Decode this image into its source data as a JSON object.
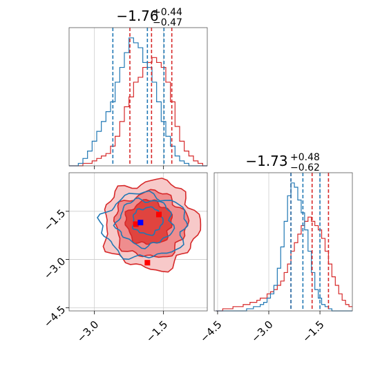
{
  "colors": {
    "red": "#d62728",
    "blue": "#1f77b4",
    "grid": "#cccccc",
    "red_fill_1": "#f7c9c9",
    "red_fill_2": "#ef8d8e",
    "red_fill_3": "#e0443f",
    "marker_red": "#ff0000",
    "marker_blue": "#0000ff"
  },
  "chart_data": [
    {
      "type": "histogram",
      "panel": "top-left marginal",
      "title": {
        "value": "−1.76",
        "upper": "+0.44",
        "lower": "−0.47"
      },
      "xlim": [
        -3.55,
        -0.55
      ],
      "xticks": [
        -3.0,
        -1.5
      ],
      "quantile_lines": {
        "red": [
          -2.23,
          -1.76,
          -1.32
        ],
        "blue": [
          -2.6,
          -1.85,
          -1.49
        ]
      },
      "series": [
        {
          "color": "red",
          "x": [
            -3.5,
            -3.4,
            -3.3,
            -3.2,
            -3.1,
            -3.0,
            -2.9,
            -2.8,
            -2.7,
            -2.6,
            -2.5,
            -2.4,
            -2.3,
            -2.2,
            -2.1,
            -2.0,
            -1.9,
            -1.8,
            -1.7,
            -1.6,
            -1.5,
            -1.4,
            -1.3,
            -1.2,
            -1.1,
            -1.0,
            -0.9,
            -0.8,
            -0.7,
            -0.6
          ],
          "counts": [
            0,
            0,
            0,
            1,
            1,
            2,
            3,
            4,
            5,
            8,
            12,
            18,
            24,
            28,
            34,
            36,
            40,
            42,
            44,
            42,
            40,
            34,
            26,
            16,
            10,
            6,
            4,
            2,
            1,
            0
          ]
        },
        {
          "color": "blue",
          "x": [
            -3.5,
            -3.4,
            -3.3,
            -3.2,
            -3.1,
            -3.0,
            -2.9,
            -2.8,
            -2.7,
            -2.6,
            -2.5,
            -2.4,
            -2.3,
            -2.2,
            -2.1,
            -2.0,
            -1.9,
            -1.8,
            -1.7,
            -1.6,
            -1.5,
            -1.4,
            -1.3,
            -1.2,
            -1.1,
            -1.0,
            -0.9,
            -0.8,
            -0.7,
            -0.6
          ],
          "counts": [
            0,
            0,
            1,
            3,
            6,
            10,
            14,
            18,
            22,
            26,
            34,
            40,
            46,
            52,
            50,
            48,
            42,
            40,
            34,
            26,
            18,
            12,
            8,
            4,
            2,
            1,
            0,
            0,
            0,
            0
          ]
        }
      ]
    },
    {
      "type": "histogram",
      "panel": "bottom-right marginal",
      "title": {
        "value": "−1.73",
        "upper": "+0.48",
        "lower": "−0.62"
      },
      "xlim": [
        -4.6,
        -0.55
      ],
      "xticks": [
        -4.5,
        -3.0,
        -1.5
      ],
      "quantile_lines": {
        "red": [
          -2.35,
          -1.73,
          -1.25
        ],
        "blue": [
          -2.35,
          -2.0,
          -1.5
        ]
      },
      "series": [
        {
          "color": "red",
          "x": [
            -4.5,
            -4.4,
            -4.3,
            -4.2,
            -4.1,
            -4.0,
            -3.9,
            -3.8,
            -3.7,
            -3.6,
            -3.5,
            -3.4,
            -3.3,
            -3.2,
            -3.1,
            -3.0,
            -2.9,
            -2.8,
            -2.7,
            -2.6,
            -2.5,
            -2.4,
            -2.3,
            -2.2,
            -2.1,
            -2.0,
            -1.9,
            -1.8,
            -1.7,
            -1.6,
            -1.5,
            -1.4,
            -1.3,
            -1.2,
            -1.1,
            -1.0,
            -0.9,
            -0.8,
            -0.7,
            -0.6
          ],
          "counts": [
            0,
            0,
            1,
            1,
            1,
            2,
            2,
            2,
            3,
            3,
            4,
            4,
            5,
            6,
            6,
            8,
            9,
            10,
            12,
            14,
            18,
            22,
            28,
            32,
            36,
            40,
            42,
            44,
            42,
            40,
            38,
            34,
            28,
            22,
            16,
            12,
            8,
            5,
            3,
            2
          ]
        },
        {
          "color": "blue",
          "x": [
            -4.5,
            -4.4,
            -4.3,
            -4.2,
            -4.1,
            -4.0,
            -3.9,
            -3.8,
            -3.7,
            -3.6,
            -3.5,
            -3.4,
            -3.3,
            -3.2,
            -3.1,
            -3.0,
            -2.9,
            -2.8,
            -2.7,
            -2.6,
            -2.5,
            -2.4,
            -2.3,
            -2.2,
            -2.1,
            -2.0,
            -1.9,
            -1.8,
            -1.7,
            -1.6,
            -1.5,
            -1.4,
            -1.3,
            -1.2,
            -1.1,
            -1.0,
            -0.9,
            -0.8,
            -0.7,
            -0.6
          ],
          "counts": [
            0,
            0,
            0,
            0,
            0,
            0,
            0,
            0,
            0,
            1,
            1,
            2,
            2,
            3,
            4,
            6,
            8,
            12,
            20,
            30,
            42,
            54,
            60,
            58,
            52,
            46,
            38,
            28,
            18,
            10,
            6,
            3,
            2,
            1,
            0,
            0,
            0,
            0,
            0,
            0
          ]
        }
      ]
    },
    {
      "type": "contour",
      "panel": "bottom-left joint",
      "xlim": [
        -3.55,
        -0.55
      ],
      "ylim": [
        -4.6,
        -0.3
      ],
      "xticks": [
        -3.0,
        -1.5
      ],
      "yticks": [
        -1.5,
        -3.0,
        -4.5
      ],
      "red_levels": [
        {
          "level": 1,
          "cx": -1.78,
          "cy": -1.92,
          "rx": 1.02,
          "ry": 1.38
        },
        {
          "level": 2,
          "cx": -1.78,
          "cy": -1.92,
          "rx": 0.78,
          "ry": 1.02
        },
        {
          "level": 3,
          "cx": -1.82,
          "cy": -1.85,
          "rx": 0.5,
          "ry": 0.68
        }
      ],
      "blue_levels": [
        {
          "level": 1,
          "cx": -1.92,
          "cy": -1.95,
          "rx": 0.92,
          "ry": 1.0
        },
        {
          "level": 2,
          "cx": -1.9,
          "cy": -1.85,
          "rx": 0.6,
          "ry": 0.72
        },
        {
          "level": 3,
          "cx": -1.85,
          "cy": -1.8,
          "rx": 0.32,
          "ry": 0.42
        }
      ],
      "markers": [
        {
          "color": "marker_red",
          "x": -1.6,
          "y": -1.6
        },
        {
          "color": "marker_red",
          "x": -2.1,
          "y": -1.9
        },
        {
          "color": "marker_red",
          "x": -1.85,
          "y": -3.1
        },
        {
          "color": "marker_blue",
          "x": -2.0,
          "y": -1.85
        }
      ]
    }
  ]
}
